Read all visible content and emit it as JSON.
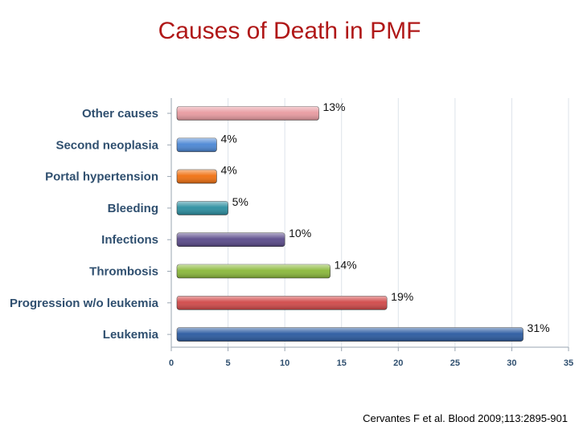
{
  "title": "Causes of Death in PMF",
  "citation": "Cervantes F et al. Blood 2009;113:2895-901",
  "chart_data": {
    "type": "bar",
    "orientation": "horizontal",
    "title": "",
    "xlabel": "",
    "ylabel": "",
    "categories": [
      "Other causes",
      "Second neoplasia",
      "Portal hypertension",
      "Bleeding",
      "Infections",
      "Thrombosis",
      "Progression w/o leukemia",
      "Leukemia"
    ],
    "values": [
      13,
      4,
      4,
      5,
      10,
      14,
      19,
      31
    ],
    "data_labels": [
      "13%",
      "4%",
      "4%",
      "5%",
      "10%",
      "14%",
      "19%",
      "31%"
    ],
    "colors": [
      "#e89aa0",
      "#4a86d4",
      "#f07010",
      "#2a8ea0",
      "#5a4a8a",
      "#8ab83a",
      "#d04848",
      "#2a5aa0"
    ],
    "xlim": [
      0,
      35
    ],
    "xticks": [
      0,
      5,
      10,
      15,
      20,
      25,
      30,
      35
    ],
    "grid": true
  }
}
